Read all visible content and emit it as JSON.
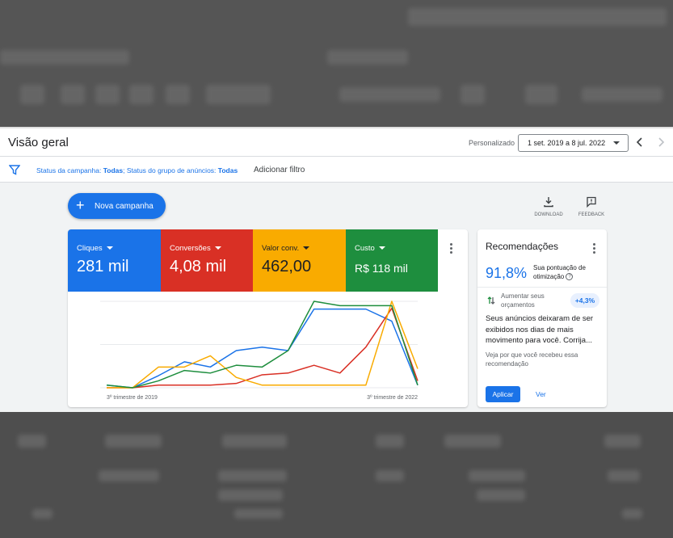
{
  "header": {
    "title": "Visão geral",
    "period_label": "Personalizado",
    "date_range": "1 set. 2019 a 8 jul. 2022"
  },
  "filter": {
    "campaign_label": "Status da campanha: ",
    "campaign_value": "Todas",
    "adgroup_label": "; Status do grupo de anúncios: ",
    "adgroup_value": "Todas",
    "add_filter": "Adicionar filtro"
  },
  "actions": {
    "new_campaign": "Nova campanha",
    "download": "DOWNLOAD",
    "feedback": "FEEDBACK"
  },
  "metrics": [
    {
      "name": "Cliques",
      "value": "281 mil",
      "color": "#1a73e8"
    },
    {
      "name": "Conversões",
      "value": "4,08 mil",
      "color": "#d93025"
    },
    {
      "name": "Valor conv.",
      "value": "462,00",
      "color": "#f9ab00"
    },
    {
      "name": "Custo",
      "value": "R$ 118 mil",
      "color": "#1e8e3e"
    }
  ],
  "chart_data": {
    "type": "line",
    "x_tick_labels": [
      "3º trimestre de 2019",
      "3º trimestre de 2022"
    ],
    "x": [
      0,
      1,
      2,
      3,
      4,
      5,
      6,
      7,
      8,
      9,
      10,
      11,
      12
    ],
    "ylim": [
      0,
      100
    ],
    "series": [
      {
        "color": "#1a73e8",
        "values": [
          3,
          0,
          14,
          30,
          24,
          43,
          47,
          43,
          91,
          91,
          91,
          77,
          3
        ]
      },
      {
        "color": "#d93025",
        "values": [
          0,
          0,
          3,
          3,
          3,
          5,
          15,
          17,
          26,
          17,
          47,
          92,
          8
        ]
      },
      {
        "color": "#f9ab00",
        "values": [
          0,
          0,
          24,
          24,
          37,
          12,
          3,
          3,
          3,
          3,
          3,
          100,
          22
        ]
      },
      {
        "color": "#1e8e3e",
        "values": [
          3,
          0,
          8,
          20,
          17,
          26,
          24,
          43,
          100,
          95,
          95,
          95,
          3
        ]
      }
    ]
  },
  "recommendations": {
    "title": "Recomendações",
    "score": "91,8%",
    "score_label": "Sua pontuação de otimização",
    "item_label": "Aumentar seus orçamentos",
    "item_chip": "+4,3%",
    "body": "Seus anúncios deixaram de ser exibidos nos dias de mais movimento para você. Corrija...",
    "why": "Veja por que você recebeu essa recomendação",
    "apply": "Aplicar",
    "view": "Ver"
  }
}
